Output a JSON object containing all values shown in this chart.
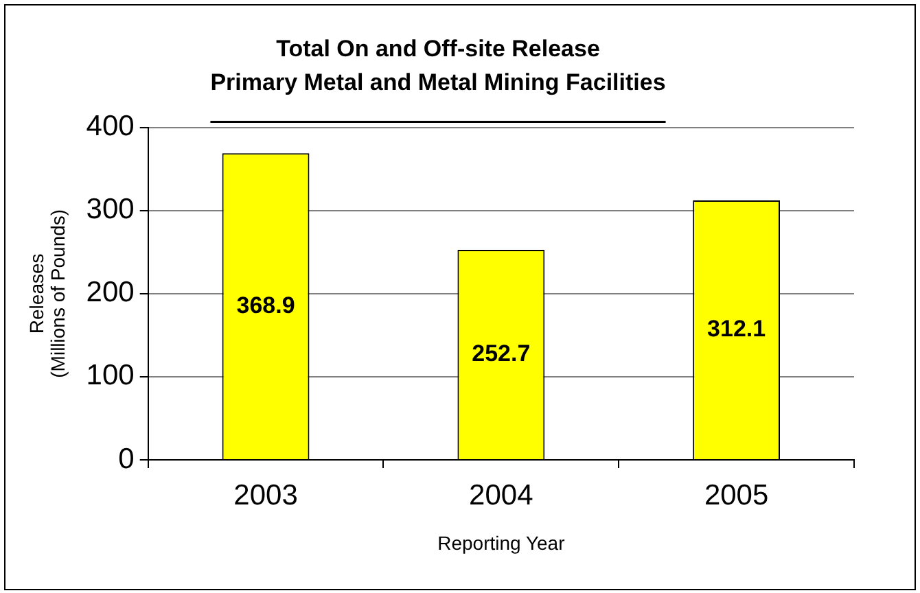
{
  "chart_data": {
    "type": "bar",
    "title": "Total On and Off-site Release",
    "subtitle": "Primary Metal and Metal Mining Facilities",
    "xlabel": "Reporting Year",
    "ylabel": "Releases\n(Millions of Pounds)",
    "categories": [
      "2003",
      "2004",
      "2005"
    ],
    "values": [
      368.9,
      252.7,
      312.1
    ],
    "color": "#ffff00",
    "ylim": [
      0,
      400
    ],
    "yticks": [
      0,
      100,
      200,
      300,
      400
    ],
    "grid": "y",
    "data_labels": true
  }
}
